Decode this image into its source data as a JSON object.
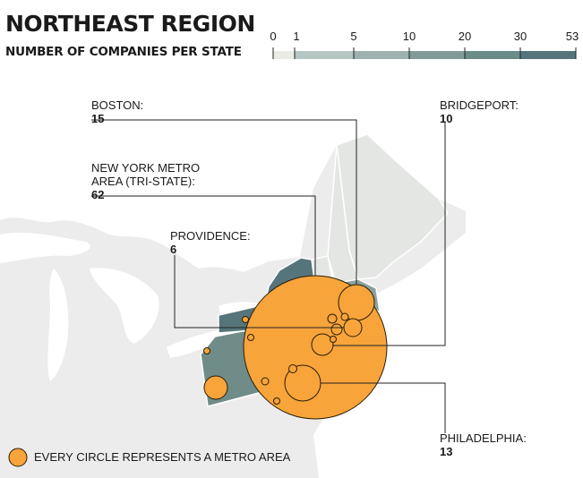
{
  "title": "NORTHEAST REGION",
  "subtitle": "NUMBER OF COMPANIES PER STATE",
  "legend": {
    "ticks": [
      "0",
      "1",
      "5",
      "10",
      "20",
      "30",
      "53"
    ],
    "colors": [
      "#ebebe6",
      "#b6c6c2",
      "#9db2ae",
      "#819c98",
      "#6a8c88",
      "#55757b"
    ]
  },
  "colors": {
    "circle": "#f7a43a",
    "circle_stroke": "#2b1d08",
    "land": "#ececec",
    "state_dark": "#55757b",
    "state_mid": "#6f8c88",
    "state_light": "#dfe3e0",
    "leader": "#222222"
  },
  "callouts": {
    "boston": {
      "name": "BOSTON:",
      "value": "15"
    },
    "nyc": {
      "name": "NEW YORK METRO\nAREA (TRI-STATE):",
      "value": "62"
    },
    "providence": {
      "name": "PROVIDENCE:",
      "value": "6"
    },
    "bridgeport": {
      "name": "BRIDGEPORT:",
      "value": "10"
    },
    "philadelphia": {
      "name": "PHILADELPHIA:",
      "value": "13"
    }
  },
  "note": "EVERY CIRCLE REPRESENTS A METRO AREA"
}
